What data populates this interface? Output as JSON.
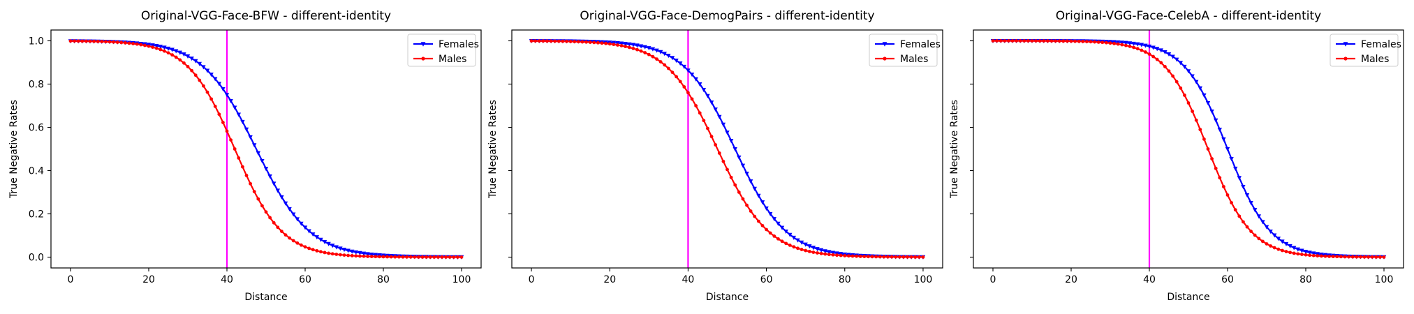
{
  "colors": {
    "females": "#0000ff",
    "males": "#ff0000",
    "threshold": "#ff00ff",
    "axes": "#000000"
  },
  "chart_data": [
    {
      "type": "line",
      "title": "Original-VGG-Face-BFW - different-identity",
      "xlabel": "Distance",
      "ylabel": "True Negative Rates",
      "xlim": [
        -5,
        105
      ],
      "ylim": [
        -0.05,
        1.05
      ],
      "xticks": [
        0,
        20,
        40,
        60,
        80,
        100
      ],
      "yticks": [
        0.0,
        0.2,
        0.4,
        0.6,
        0.8,
        1.0
      ],
      "show_ytick_labels": true,
      "threshold_x": 40,
      "legend_position": "upper right",
      "series": [
        {
          "name": "Females",
          "color": "#0000ff",
          "marker": "triangle-down",
          "midpoint": 47.5,
          "scale": 6.8
        },
        {
          "name": "Males",
          "color": "#ff0000",
          "marker": "circle",
          "midpoint": 42.0,
          "scale": 6.0
        }
      ]
    },
    {
      "type": "line",
      "title": "Original-VGG-Face-DemogPairs - different-identity",
      "xlabel": "Distance",
      "ylabel": "True Negative Rates",
      "xlim": [
        -5,
        105
      ],
      "ylim": [
        -0.05,
        1.05
      ],
      "xticks": [
        0,
        20,
        40,
        60,
        80,
        100
      ],
      "yticks": [
        0.0,
        0.2,
        0.4,
        0.6,
        0.8,
        1.0
      ],
      "show_ytick_labels": false,
      "threshold_x": 40,
      "legend_position": "upper right",
      "series": [
        {
          "name": "Females",
          "color": "#0000ff",
          "marker": "triangle-down",
          "midpoint": 52.0,
          "scale": 6.5
        },
        {
          "name": "Males",
          "color": "#ff0000",
          "marker": "circle",
          "midpoint": 47.5,
          "scale": 6.5
        }
      ]
    },
    {
      "type": "line",
      "title": "Original-VGG-Face-CelebA - different-identity",
      "xlabel": "Distance",
      "ylabel": "True Negative Rates",
      "xlim": [
        -5,
        105
      ],
      "ylim": [
        -0.05,
        1.05
      ],
      "xticks": [
        0,
        20,
        40,
        60,
        80,
        100
      ],
      "yticks": [
        0.0,
        0.2,
        0.4,
        0.6,
        0.8,
        1.0
      ],
      "show_ytick_labels": false,
      "threshold_x": 40,
      "legend_position": "upper right",
      "series": [
        {
          "name": "Females",
          "color": "#0000ff",
          "marker": "triangle-down",
          "midpoint": 60.0,
          "scale": 5.5
        },
        {
          "name": "Males",
          "color": "#ff0000",
          "marker": "circle",
          "midpoint": 55.0,
          "scale": 5.5
        }
      ]
    }
  ]
}
